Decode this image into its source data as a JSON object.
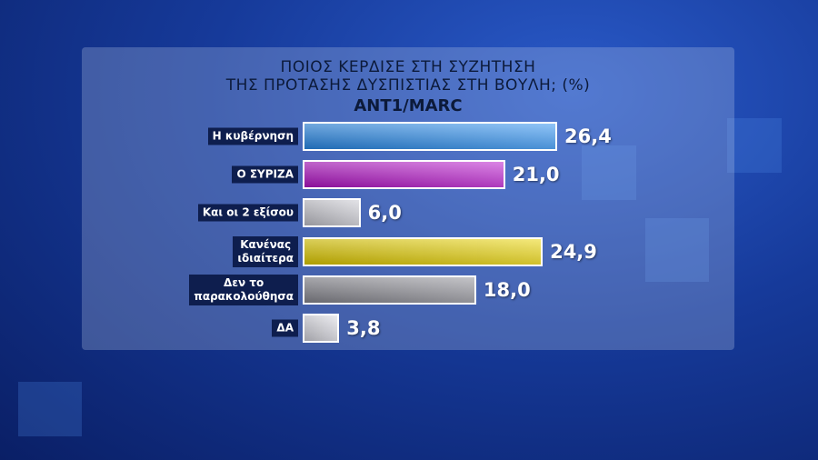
{
  "chart_data": {
    "type": "barh",
    "title": "ΠΟΙΟΣ ΚΕΡΔΙΣΕ ΣΤΗ ΣΥΖΗΤΗΣΗ\nΤΗΣ ΠΡΟΤΑΣΗΣ ΔΥΣΠΙΣΤΙΑΣ ΣΤΗ ΒΟΥΛΗ; (%)",
    "subtitle": "ANT1/MARC",
    "categories": [
      "Η κυβέρνηση",
      "Ο ΣΥΡΙΖΑ",
      "Και οι 2 εξίσου",
      "Κανένας\nιδιαίτερα",
      "Δεν το\nπαρακολούθησα",
      "ΔΑ"
    ],
    "values": [
      26.4,
      21.0,
      6.0,
      24.9,
      18.0,
      3.8
    ],
    "value_labels": [
      "26,4",
      "21,0",
      "6,0",
      "24,9",
      "18,0",
      "3,8"
    ],
    "colors": [
      "#2a8ef0",
      "#b814cc",
      "#c8c8d0",
      "#e8d200",
      "#8c8c94",
      "#d8d8e0"
    ]
  }
}
